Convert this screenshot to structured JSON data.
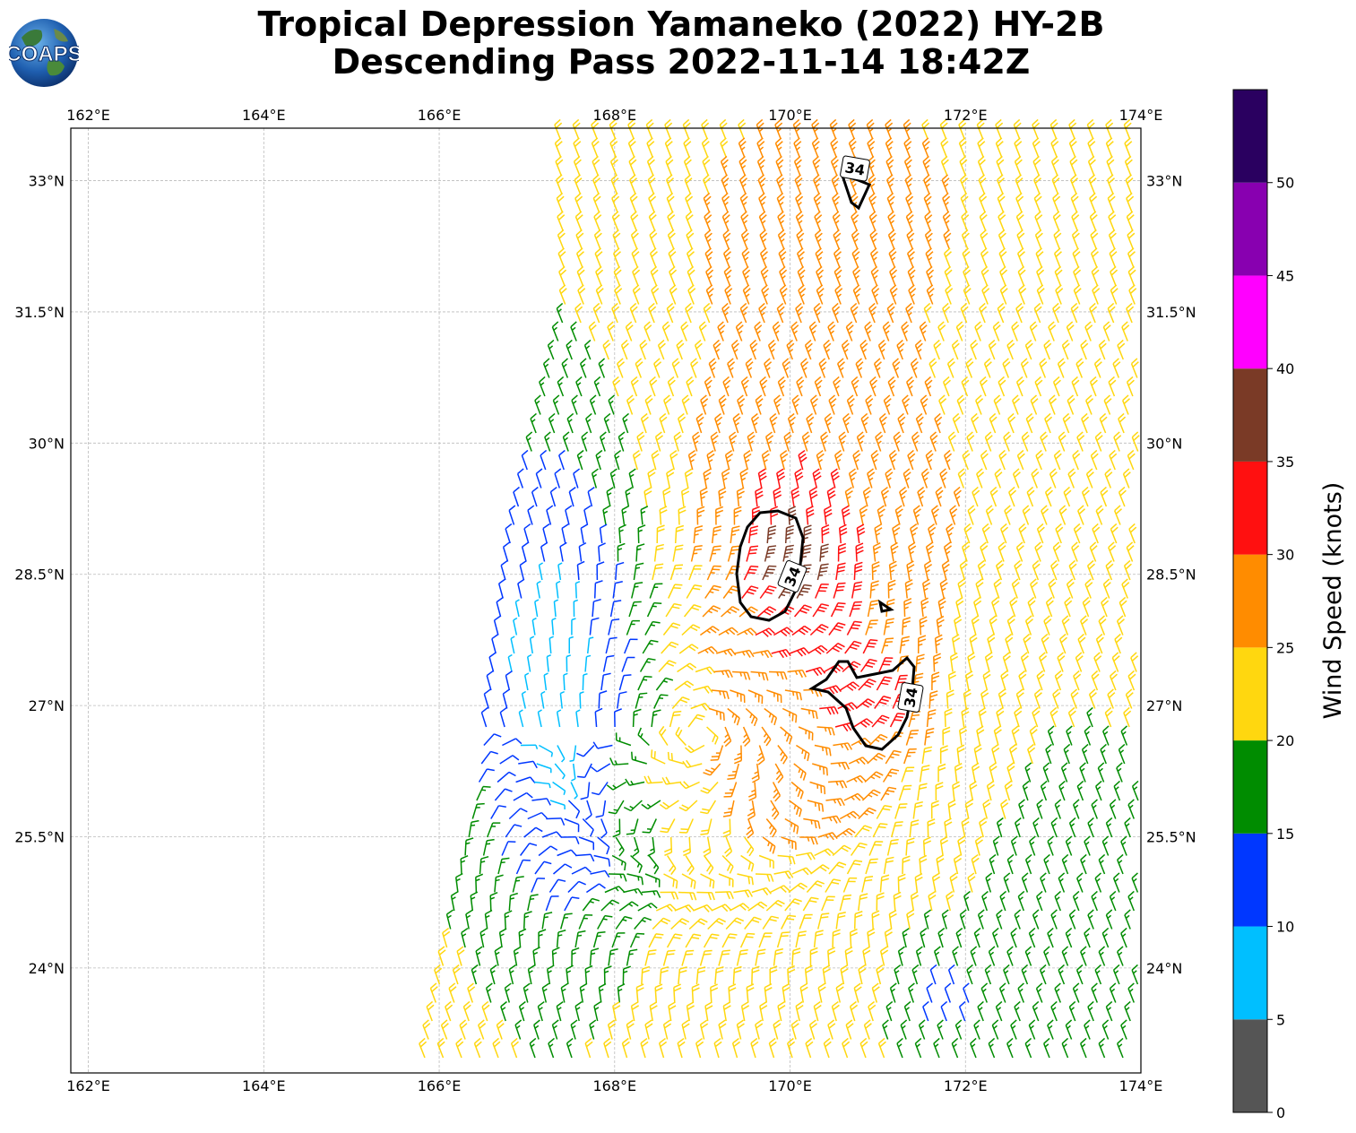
{
  "title": {
    "line1": "Tropical Depression Yamaneko (2022) HY-2B",
    "line2": "Descending Pass 2022-11-14 18:42Z"
  },
  "logo": {
    "text": "COAPS",
    "icon": "globe-icon"
  },
  "colorbar": {
    "label": "Wind Speed (knots)",
    "ticks": [
      "0",
      "5",
      "10",
      "15",
      "20",
      "25",
      "30",
      "35",
      "40",
      "45",
      "50"
    ],
    "colors": [
      "#555555",
      "#00bfff",
      "#0037ff",
      "#008c00",
      "#ffd70f",
      "#ff8c00",
      "#ff1010",
      "#7a3a26",
      "#ff00ff",
      "#8800b0",
      "#2a0060"
    ],
    "max": 55
  },
  "map": {
    "lon_labels": [
      "162°E",
      "164°E",
      "166°E",
      "168°E",
      "170°E",
      "172°E",
      "174°E"
    ],
    "lat_labels": [
      "33°N",
      "31.5°N",
      "30°N",
      "28.5°N",
      "27°N",
      "25.5°N",
      "24°N"
    ],
    "lon_values": [
      162,
      164,
      166,
      168,
      170,
      172,
      174
    ],
    "lat_values": [
      33,
      31.5,
      30,
      28.5,
      27,
      25.5,
      24
    ],
    "extent": {
      "lon": [
        161.8,
        174.0
      ],
      "lat": [
        22.8,
        33.6
      ]
    },
    "contour_label": "34",
    "contour_level_knots": 34
  }
}
